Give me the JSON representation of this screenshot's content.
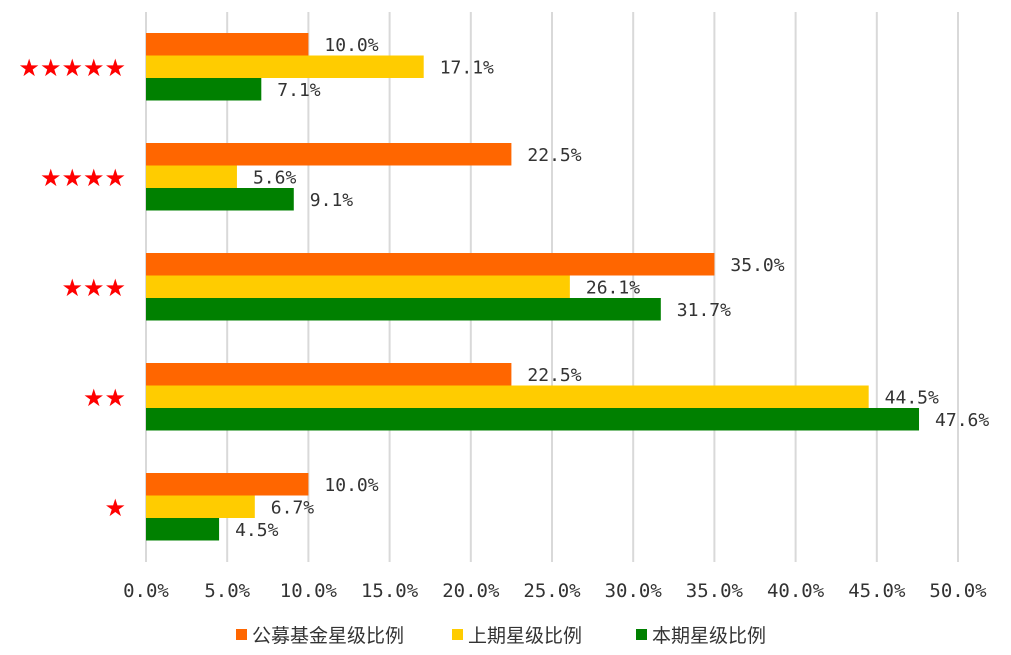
{
  "chart_data": {
    "type": "bar",
    "orientation": "horizontal",
    "title": "",
    "xlabel": "",
    "ylabel": "",
    "xlim": [
      0,
      50
    ],
    "x_ticks": [
      0,
      5,
      10,
      15,
      20,
      25,
      30,
      35,
      40,
      45,
      50
    ],
    "x_tick_labels": [
      "0.0%",
      "5.0%",
      "10.0%",
      "15.0%",
      "20.0%",
      "25.0%",
      "30.0%",
      "35.0%",
      "40.0%",
      "45.0%",
      "50.0%"
    ],
    "grid": true,
    "legend_position": "bottom",
    "categories": [
      "★★★★★",
      "★★★★",
      "★★★",
      "★★",
      "★"
    ],
    "category_color": "#ff0000",
    "series": [
      {
        "name": "公募基金星级比例",
        "color": "#ff6600",
        "values": [
          10.0,
          22.5,
          35.0,
          22.5,
          10.0
        ],
        "labels": [
          "10.0%",
          "22.5%",
          "35.0%",
          "22.5%",
          "10.0%"
        ]
      },
      {
        "name": "上期星级比例",
        "color": "#ffcc00",
        "values": [
          17.1,
          5.6,
          26.1,
          44.5,
          6.7
        ],
        "labels": [
          "17.1%",
          "5.6%",
          "26.1%",
          "44.5%",
          "6.7%"
        ]
      },
      {
        "name": "本期星级比例",
        "color": "#008000",
        "values": [
          7.1,
          9.1,
          31.7,
          47.6,
          4.5
        ],
        "labels": [
          "7.1%",
          "9.1%",
          "31.7%",
          "47.6%",
          "4.5%"
        ]
      }
    ]
  }
}
